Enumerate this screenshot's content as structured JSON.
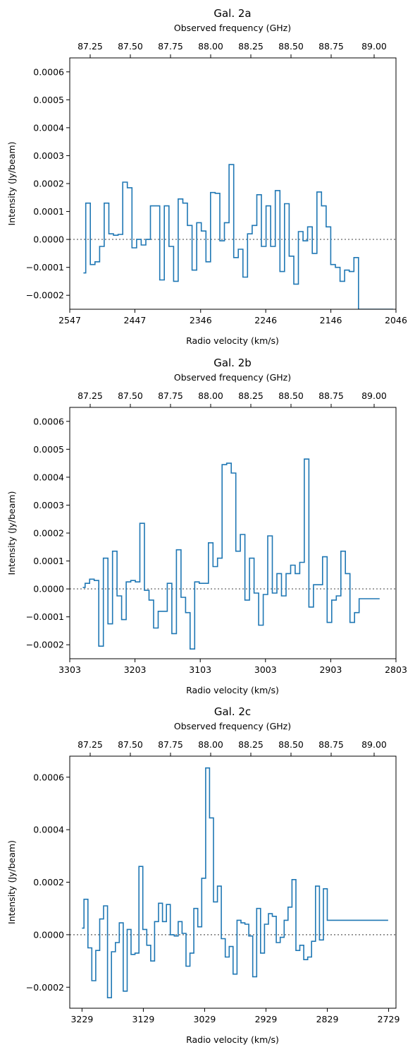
{
  "chart_data": [
    {
      "type": "line",
      "style": "step",
      "title": "Gal. 2a",
      "xlabel": "Radio velocity (km/s)",
      "ylabel": "Intensity (Jy/beam)",
      "secondary_xlabel": "Observed frequency (GHz)",
      "xlim": [
        2547,
        2046
      ],
      "ylim": [
        -0.00025,
        0.00065
      ],
      "x_ticks": [
        "2547",
        "2447",
        "2346",
        "2246",
        "2146",
        "2046"
      ],
      "y_ticks": [
        "−0.0002",
        "−0.0001",
        "0.0000",
        "0.0001",
        "0.0002",
        "0.0003",
        "0.0004",
        "0.0005",
        "0.0006"
      ],
      "freq_ticks": [
        "87.25",
        "87.50",
        "87.75",
        "88.00",
        "88.25",
        "88.50",
        "88.75",
        "89.00"
      ],
      "series_color": "#1f77b4",
      "zero_line": "dotted",
      "grid": false,
      "series": [
        {
          "x": [
            2526.0,
            2518.9,
            2511.8,
            2504.7,
            2497.6,
            2490.5,
            2483.4,
            2476.3,
            2469.2,
            2462.1,
            2455.0,
            2447.9,
            2440.8,
            2433.7,
            2426.6,
            2419.5,
            2412.4,
            2405.3,
            2398.2,
            2391.1,
            2384.0,
            2376.9,
            2369.8,
            2362.7,
            2355.6,
            2348.5,
            2341.4,
            2334.3,
            2327.2,
            2320.1,
            2313.0,
            2305.9,
            2298.8,
            2291.7,
            2284.6,
            2277.5,
            2270.4,
            2263.3,
            2256.2,
            2249.1,
            2242.0,
            2234.9,
            2227.8,
            2220.7,
            2213.6,
            2206.5,
            2199.4,
            2192.3,
            2185.2,
            2178.1,
            2171.0,
            2163.9,
            2156.8,
            2149.7,
            2142.6,
            2135.5,
            2128.4,
            2121.3,
            2114.2,
            2107.1,
            2100.0,
            2092.9,
            2085.8,
            2078.7,
            2071.6,
            2064.5,
            2057.4,
            2050.3
          ],
          "values": [
            -0.00012,
            0.00013,
            -9e-05,
            -8e-05,
            -2.5e-05,
            0.00013,
            2e-05,
            1.5e-05,
            1.8e-05,
            0.000205,
            0.000185,
            -3e-05,
            0.0,
            -2e-05,
            0.0,
            0.00012,
            0.00012,
            -0.000145,
            0.00012,
            -2.5e-05,
            -0.00015,
            0.000145,
            0.00013,
            5e-05,
            -0.00011,
            6e-05,
            3e-05,
            -8e-05,
            0.000168,
            0.000165,
            -5e-06,
            6e-05,
            0.000268,
            -6.5e-05,
            -3.5e-05,
            -0.000135,
            2e-05,
            5e-05,
            0.00016,
            -2.5e-05,
            0.00012,
            -2.5e-05,
            0.000175,
            -0.000115,
            0.000128,
            -6e-05,
            -0.00016,
            2.8e-05,
            -5e-06,
            4.5e-05,
            -5e-05,
            0.00017,
            0.00012,
            4.5e-05,
            -9e-05,
            -0.0001,
            -0.00015,
            -0.00011,
            -0.000115,
            -6.5e-05,
            -0.00025,
            -0.00025,
            -0.00025,
            -0.00025,
            -0.00025,
            -0.00025,
            -0.00025,
            -0.00025
          ]
        }
      ]
    },
    {
      "type": "line",
      "style": "step",
      "title": "Gal. 2b",
      "xlabel": "Radio velocity (km/s)",
      "ylabel": "Intensity (Jy/beam)",
      "secondary_xlabel": "Observed frequency (GHz)",
      "xlim": [
        3303,
        2803
      ],
      "ylim": [
        -0.00025,
        0.00065
      ],
      "x_ticks": [
        "3303",
        "3203",
        "3103",
        "3003",
        "2903",
        "2803"
      ],
      "y_ticks": [
        "−0.0002",
        "−0.0001",
        "0.0000",
        "0.0001",
        "0.0002",
        "0.0003",
        "0.0004",
        "0.0005",
        "0.0006"
      ],
      "freq_ticks": [
        "87.25",
        "87.50",
        "87.75",
        "88.00",
        "88.25",
        "88.50",
        "88.75",
        "89.00"
      ],
      "series_color": "#1f77b4",
      "zero_line": "dotted",
      "grid": false,
      "series": [
        {
          "x": [
            3283.0,
            3276.0,
            3269.0,
            3262.0,
            3255.0,
            3248.0,
            3241.0,
            3234.0,
            3227.0,
            3220.0,
            3213.0,
            3206.0,
            3199.0,
            3192.0,
            3185.0,
            3178.0,
            3171.0,
            3164.0,
            3157.0,
            3150.0,
            3143.0,
            3136.0,
            3129.0,
            3122.0,
            3115.0,
            3108.0,
            3101.0,
            3094.0,
            3087.0,
            3080.0,
            3073.0,
            3066.0,
            3059.0,
            3052.0,
            3045.0,
            3038.0,
            3031.0,
            3024.0,
            3017.0,
            3010.0,
            3003.0,
            2996.0,
            2989.0,
            2982.0,
            2975.0,
            2968.0,
            2961.0,
            2954.0,
            2947.0,
            2940.0,
            2933.0,
            2926.0,
            2919.0,
            2912.0,
            2905.0,
            2898.0,
            2891.0,
            2884.0,
            2877.0,
            2870.0,
            2863.0,
            2856.0,
            2849.0,
            2842.0,
            2835.0,
            2828.0
          ],
          "values": [
            5e-06,
            2e-05,
            3.5e-05,
            3e-05,
            -0.000205,
            0.00011,
            -0.000125,
            0.000135,
            -2.5e-05,
            -0.00011,
            2.5e-05,
            3e-05,
            2.5e-05,
            0.000235,
            -5e-06,
            -4e-05,
            -0.00014,
            -8e-05,
            -8e-05,
            2e-05,
            -0.00016,
            0.00014,
            -3e-05,
            -8.5e-05,
            -0.000215,
            2.5e-05,
            2e-05,
            2e-05,
            0.000165,
            8e-05,
            0.00011,
            0.000445,
            0.00045,
            0.000415,
            0.000135,
            0.000195,
            -4e-05,
            0.00011,
            -1.5e-05,
            -0.00013,
            -2e-05,
            0.00019,
            -1.5e-05,
            5.5e-05,
            -2.5e-05,
            5.5e-05,
            8.5e-05,
            5.5e-05,
            9.5e-05,
            0.000465,
            -6.5e-05,
            1.5e-05,
            1.5e-05,
            0.000115,
            -0.00012,
            -4e-05,
            -2.5e-05,
            0.000135,
            5.5e-05,
            -0.00012,
            -8.5e-05,
            -3.5e-05,
            -3.5e-05,
            -3.5e-05,
            -3.5e-05,
            -3.5e-05
          ]
        }
      ]
    },
    {
      "type": "line",
      "style": "step",
      "title": "Gal. 2c",
      "xlabel": "Radio velocity (km/s)",
      "ylabel": "Intensity (Jy/beam)",
      "secondary_xlabel": "Observed frequency (GHz)",
      "xlim": [
        3249,
        2717
      ],
      "ylim": [
        -0.00028,
        0.00068
      ],
      "x_ticks": [
        "3229",
        "3129",
        "3029",
        "2929",
        "2829",
        "2729"
      ],
      "y_ticks": [
        "−0.0002",
        "0.0000",
        "0.0002",
        "0.0004",
        "0.0006"
      ],
      "freq_ticks": [
        "87.25",
        "87.50",
        "87.75",
        "88.00",
        "88.25",
        "88.50",
        "88.75",
        "89.00"
      ],
      "series_color": "#1f77b4",
      "zero_line": "dotted",
      "grid": false,
      "series": [
        {
          "x": [
            3229.0,
            3222.6,
            3216.2,
            3209.8,
            3203.4,
            3197.0,
            3190.6,
            3184.2,
            3177.8,
            3171.4,
            3165.0,
            3158.6,
            3152.2,
            3145.8,
            3139.4,
            3133.0,
            3126.6,
            3120.2,
            3113.8,
            3107.4,
            3101.0,
            3094.6,
            3088.2,
            3081.8,
            3075.4,
            3069.0,
            3062.6,
            3056.2,
            3049.8,
            3043.4,
            3037.0,
            3030.6,
            3024.2,
            3017.8,
            3011.4,
            3005.0,
            2998.6,
            2992.2,
            2985.8,
            2979.4,
            2973.0,
            2966.6,
            2960.2,
            2953.8,
            2947.4,
            2941.0,
            2934.6,
            2928.2,
            2921.8,
            2915.4,
            2909.0,
            2902.6,
            2896.2,
            2889.8,
            2883.4,
            2877.0,
            2870.6,
            2864.2,
            2857.8,
            2851.4,
            2845.0,
            2838.6,
            2832.2,
            2825.8,
            2819.4,
            2813.0,
            2806.6,
            2800.2,
            2793.8,
            2787.4,
            2781.0,
            2774.6,
            2768.2,
            2761.8,
            2755.4,
            2749.0,
            2742.6,
            2736.2,
            2729.8
          ],
          "values": [
            2.5e-05,
            0.000135,
            -5e-05,
            -0.000175,
            -6e-05,
            6e-05,
            0.00011,
            -0.00024,
            -6.5e-05,
            -3e-05,
            4.5e-05,
            -0.000215,
            2e-05,
            -7.5e-05,
            -7e-05,
            0.00026,
            2e-05,
            -4e-05,
            -0.0001,
            5e-05,
            0.00012,
            5e-05,
            0.000115,
            0.0,
            -5e-06,
            5e-05,
            5e-06,
            -0.00012,
            -7e-05,
            0.0001,
            3e-05,
            0.000215,
            0.000635,
            0.000445,
            0.000125,
            0.000185,
            -1.5e-05,
            -8.5e-05,
            -4.5e-05,
            -0.00015,
            5.5e-05,
            4.5e-05,
            4e-05,
            -5e-06,
            -0.00016,
            0.0001,
            -7e-05,
            4e-05,
            8e-05,
            7e-05,
            -3e-05,
            -1e-05,
            5.5e-05,
            0.000105,
            0.00021,
            -6e-05,
            -4e-05,
            -9.5e-05,
            -8.5e-05,
            -2.5e-05,
            0.000185,
            -2e-05,
            0.000175,
            5.5e-05,
            5.5e-05,
            5.5e-05,
            5.5e-05,
            5.5e-05,
            5.5e-05,
            5.5e-05,
            5.5e-05,
            5.5e-05,
            5.5e-05,
            5.5e-05,
            5.5e-05,
            5.5e-05,
            5.5e-05,
            5.5e-05,
            5.5e-05
          ]
        }
      ]
    }
  ]
}
